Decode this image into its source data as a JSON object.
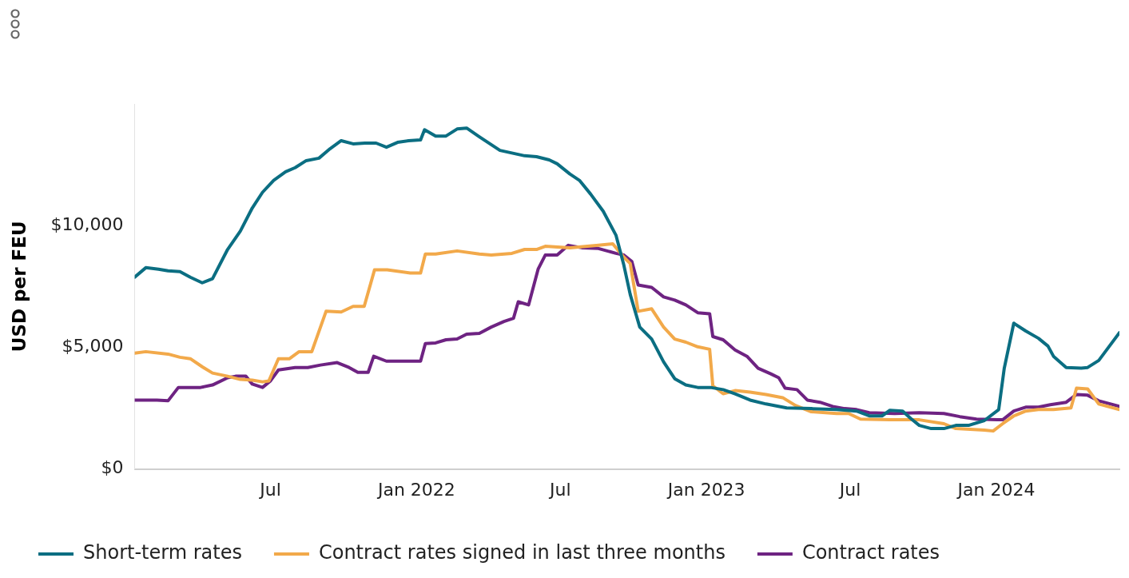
{
  "chart_data": {
    "type": "line",
    "ylabel": "USD per FEU",
    "xlim": [
      "2021-01-11",
      "2024-06-04"
    ],
    "ylim": [
      0,
      15000
    ],
    "xticks": [
      {
        "value": "2021-07-01",
        "label": "Jul"
      },
      {
        "value": "2022-01-01",
        "label": "Jan 2022"
      },
      {
        "value": "2022-07-01",
        "label": "Jul"
      },
      {
        "value": "2023-01-01",
        "label": "Jan 2023"
      },
      {
        "value": "2023-07-01",
        "label": "Jul"
      },
      {
        "value": "2024-01-01",
        "label": "Jan 2024"
      }
    ],
    "yticks": [
      {
        "value": 0,
        "label": "$0"
      },
      {
        "value": 5000,
        "label": "$5,000"
      },
      {
        "value": 10000,
        "label": "$10,000"
      }
    ],
    "grid": false,
    "legend": "bottom",
    "marker": "none",
    "line_style": "solid",
    "series": [
      {
        "name": "Short-term rates",
        "color": "#0b6e82",
        "x": [
          "2021-01-11",
          "2021-01-25",
          "2021-02-10",
          "2021-02-22",
          "2021-03-09",
          "2021-03-22",
          "2021-04-06",
          "2021-04-19",
          "2021-05-08",
          "2021-05-24",
          "2021-06-08",
          "2021-06-21",
          "2021-07-05",
          "2021-07-20",
          "2021-08-01",
          "2021-08-15",
          "2021-08-31",
          "2021-09-14",
          "2021-09-28",
          "2021-10-13",
          "2021-10-28",
          "2021-11-11",
          "2021-11-24",
          "2021-12-08",
          "2021-12-22",
          "2022-01-06",
          "2022-01-11",
          "2022-01-25",
          "2022-02-07",
          "2022-02-21",
          "2022-03-05",
          "2022-03-21",
          "2022-04-16",
          "2022-05-17",
          "2022-06-01",
          "2022-06-17",
          "2022-06-27",
          "2022-07-13",
          "2022-07-25",
          "2022-08-08",
          "2022-08-24",
          "2022-09-09",
          "2022-09-19",
          "2022-09-27",
          "2022-10-09",
          "2022-10-24",
          "2022-11-08",
          "2022-11-22",
          "2022-12-06",
          "2022-12-21",
          "2023-01-06",
          "2023-01-22",
          "2023-02-06",
          "2023-02-25",
          "2023-03-17",
          "2023-04-12",
          "2023-05-13",
          "2023-06-14",
          "2023-07-09",
          "2023-07-25",
          "2023-08-10",
          "2023-08-20",
          "2023-09-05",
          "2023-09-15",
          "2023-09-26",
          "2023-10-11",
          "2023-10-27",
          "2023-11-11",
          "2023-11-27",
          "2023-12-17",
          "2024-01-04",
          "2024-01-11",
          "2024-01-23",
          "2024-02-07",
          "2024-02-23",
          "2024-03-06",
          "2024-03-13",
          "2024-03-29",
          "2024-04-17",
          "2024-04-25",
          "2024-05-09",
          "2024-06-04"
        ],
        "values": [
          7880,
          8270,
          8210,
          8140,
          8110,
          7880,
          7650,
          7820,
          9020,
          9770,
          10720,
          11370,
          11860,
          12210,
          12380,
          12670,
          12770,
          13160,
          13490,
          13360,
          13390,
          13390,
          13220,
          13420,
          13490,
          13520,
          13940,
          13680,
          13680,
          13970,
          14010,
          13650,
          13090,
          12870,
          12830,
          12700,
          12540,
          12120,
          11860,
          11300,
          10590,
          9610,
          8370,
          7170,
          5830,
          5340,
          4400,
          3710,
          3450,
          3350,
          3350,
          3260,
          3090,
          2830,
          2670,
          2510,
          2480,
          2440,
          2380,
          2180,
          2180,
          2410,
          2380,
          2080,
          1790,
          1660,
          1660,
          1790,
          1790,
          1990,
          2440,
          4140,
          5990,
          5670,
          5370,
          5050,
          4630,
          4170,
          4140,
          4170,
          4460,
          5600
        ]
      },
      {
        "name": "Contract rates signed in last three months",
        "color": "#f2a94a",
        "x": [
          "2021-01-11",
          "2021-01-25",
          "2021-02-22",
          "2021-03-09",
          "2021-03-22",
          "2021-04-06",
          "2021-04-19",
          "2021-05-08",
          "2021-05-24",
          "2021-06-08",
          "2021-06-21",
          "2021-06-29",
          "2021-07-11",
          "2021-07-25",
          "2021-08-06",
          "2021-08-22",
          "2021-09-09",
          "2021-09-28",
          "2021-10-13",
          "2021-10-27",
          "2021-11-09",
          "2021-11-25",
          "2021-12-24",
          "2022-01-06",
          "2022-01-12",
          "2022-01-25",
          "2022-02-21",
          "2022-03-21",
          "2022-04-05",
          "2022-05-01",
          "2022-05-17",
          "2022-06-01",
          "2022-06-12",
          "2022-07-13",
          "2022-08-18",
          "2022-09-05",
          "2022-09-19",
          "2022-09-27",
          "2022-10-07",
          "2022-10-24",
          "2022-11-08",
          "2022-11-22",
          "2022-12-06",
          "2022-12-21",
          "2023-01-05",
          "2023-01-09",
          "2023-01-22",
          "2023-02-06",
          "2023-02-25",
          "2023-03-17",
          "2023-04-07",
          "2023-04-23",
          "2023-05-13",
          "2023-06-14",
          "2023-06-29",
          "2023-07-14",
          "2023-08-20",
          "2023-09-26",
          "2023-10-27",
          "2023-11-11",
          "2023-12-17",
          "2023-12-28",
          "2024-01-09",
          "2024-01-23",
          "2024-02-07",
          "2024-02-23",
          "2024-03-13",
          "2024-04-04",
          "2024-04-11",
          "2024-04-25",
          "2024-05-09",
          "2024-06-04"
        ],
        "values": [
          4760,
          4820,
          4720,
          4590,
          4530,
          4200,
          3940,
          3810,
          3680,
          3650,
          3580,
          3620,
          4530,
          4530,
          4820,
          4820,
          6480,
          6450,
          6680,
          6680,
          8180,
          8180,
          8050,
          8050,
          8830,
          8830,
          8960,
          8830,
          8790,
          8860,
          9020,
          9020,
          9150,
          9090,
          9190,
          9250,
          8700,
          8440,
          6480,
          6580,
          5830,
          5340,
          5210,
          5020,
          4920,
          3420,
          3090,
          3220,
          3160,
          3060,
          2930,
          2610,
          2350,
          2280,
          2280,
          2050,
          2020,
          2020,
          1860,
          1660,
          1600,
          1560,
          1860,
          2180,
          2380,
          2440,
          2440,
          2510,
          3320,
          3290,
          2670,
          2440
        ]
      },
      {
        "name": "Contract rates",
        "color": "#6e2382",
        "x": [
          "2021-01-11",
          "2021-02-08",
          "2021-02-22",
          "2021-03-07",
          "2021-04-04",
          "2021-04-19",
          "2021-05-08",
          "2021-05-18",
          "2021-05-31",
          "2021-06-08",
          "2021-06-21",
          "2021-07-01",
          "2021-07-11",
          "2021-08-01",
          "2021-08-17",
          "2021-09-02",
          "2021-09-23",
          "2021-10-08",
          "2021-10-19",
          "2021-11-01",
          "2021-11-08",
          "2021-11-24",
          "2021-12-24",
          "2022-01-06",
          "2022-01-12",
          "2022-01-25",
          "2022-02-07",
          "2022-02-21",
          "2022-03-05",
          "2022-03-21",
          "2022-04-05",
          "2022-04-21",
          "2022-05-03",
          "2022-05-09",
          "2022-05-22",
          "2022-06-03",
          "2022-06-12",
          "2022-06-27",
          "2022-07-11",
          "2022-07-28",
          "2022-08-18",
          "2022-09-09",
          "2022-09-19",
          "2022-09-29",
          "2022-10-07",
          "2022-10-24",
          "2022-11-08",
          "2022-11-22",
          "2022-12-06",
          "2022-12-21",
          "2023-01-05",
          "2023-01-09",
          "2023-01-22",
          "2023-02-06",
          "2023-02-21",
          "2023-03-07",
          "2023-03-23",
          "2023-04-02",
          "2023-04-10",
          "2023-04-25",
          "2023-05-08",
          "2023-05-24",
          "2023-06-09",
          "2023-06-24",
          "2023-07-09",
          "2023-07-25",
          "2023-08-26",
          "2023-09-26",
          "2023-10-27",
          "2023-11-16",
          "2023-12-07",
          "2024-01-02",
          "2024-01-09",
          "2024-01-23",
          "2024-02-07",
          "2024-02-23",
          "2024-03-09",
          "2024-03-29",
          "2024-04-11",
          "2024-04-25",
          "2024-05-09",
          "2024-06-04"
        ],
        "values": [
          2830,
          2830,
          2800,
          3350,
          3350,
          3450,
          3750,
          3810,
          3810,
          3490,
          3350,
          3620,
          4070,
          4170,
          4170,
          4270,
          4370,
          4170,
          3970,
          3970,
          4630,
          4430,
          4430,
          4430,
          5150,
          5180,
          5310,
          5340,
          5540,
          5570,
          5830,
          6060,
          6190,
          6870,
          6740,
          8210,
          8790,
          8790,
          9190,
          9090,
          9060,
          8860,
          8790,
          8530,
          7560,
          7460,
          7070,
          6940,
          6740,
          6420,
          6380,
          5440,
          5310,
          4890,
          4630,
          4140,
          3910,
          3750,
          3320,
          3260,
          2830,
          2740,
          2570,
          2480,
          2440,
          2310,
          2280,
          2310,
          2280,
          2150,
          2050,
          2020,
          2020,
          2380,
          2540,
          2540,
          2640,
          2740,
          3060,
          3030,
          2800,
          2570
        ]
      }
    ]
  }
}
